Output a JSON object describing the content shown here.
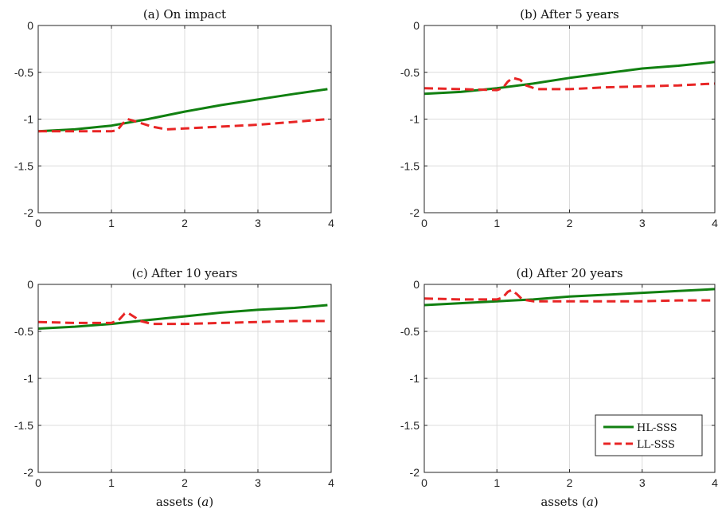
{
  "chart_data": [
    {
      "type": "line",
      "title": "(a) On impact",
      "xlabel": "",
      "xlim": [
        0,
        4
      ],
      "ylim": [
        -2,
        0
      ],
      "xticks": [
        "0",
        "1",
        "2",
        "3",
        "4"
      ],
      "yticks": [
        "-2",
        "-1.5",
        "-1",
        "-0.5",
        "0"
      ],
      "grid": true,
      "series": [
        {
          "name": "HL-SSS",
          "color": "#118011",
          "style": "solid",
          "points": [
            [
              0,
              -1.13
            ],
            [
              0.5,
              -1.11
            ],
            [
              1,
              -1.07
            ],
            [
              1.5,
              -1.0
            ],
            [
              2,
              -0.92
            ],
            [
              2.5,
              -0.85
            ],
            [
              3,
              -0.79
            ],
            [
              3.5,
              -0.73
            ],
            [
              3.95,
              -0.68
            ]
          ]
        },
        {
          "name": "LL-SSS",
          "color": "#e82525",
          "style": "dashed",
          "points": [
            [
              0,
              -1.13
            ],
            [
              0.5,
              -1.13
            ],
            [
              1.0,
              -1.13
            ],
            [
              1.08,
              -1.12
            ],
            [
              1.15,
              -1.05
            ],
            [
              1.22,
              -1.0
            ],
            [
              1.35,
              -1.03
            ],
            [
              1.55,
              -1.08
            ],
            [
              1.75,
              -1.11
            ],
            [
              2,
              -1.1
            ],
            [
              2.5,
              -1.08
            ],
            [
              3,
              -1.06
            ],
            [
              3.5,
              -1.03
            ],
            [
              3.95,
              -1.0
            ]
          ]
        }
      ]
    },
    {
      "type": "line",
      "title": "(b) After 5 years",
      "xlabel": "",
      "xlim": [
        0,
        4
      ],
      "ylim": [
        -2,
        0
      ],
      "xticks": [
        "0",
        "1",
        "2",
        "3",
        "4"
      ],
      "yticks": [
        "-2",
        "-1.5",
        "-1",
        "-0.5",
        "0"
      ],
      "grid": true,
      "series": [
        {
          "name": "HL-SSS",
          "color": "#118011",
          "style": "solid",
          "points": [
            [
              0,
              -0.73
            ],
            [
              0.5,
              -0.71
            ],
            [
              1,
              -0.67
            ],
            [
              1.5,
              -0.62
            ],
            [
              2,
              -0.56
            ],
            [
              2.5,
              -0.51
            ],
            [
              3,
              -0.46
            ],
            [
              3.5,
              -0.43
            ],
            [
              4,
              -0.39
            ]
          ]
        },
        {
          "name": "LL-SSS",
          "color": "#e82525",
          "style": "dashed",
          "points": [
            [
              0,
              -0.67
            ],
            [
              0.5,
              -0.68
            ],
            [
              1.0,
              -0.69
            ],
            [
              1.08,
              -0.67
            ],
            [
              1.15,
              -0.6
            ],
            [
              1.22,
              -0.56
            ],
            [
              1.32,
              -0.58
            ],
            [
              1.4,
              -0.64
            ],
            [
              1.55,
              -0.68
            ],
            [
              2,
              -0.68
            ],
            [
              2.5,
              -0.66
            ],
            [
              3,
              -0.65
            ],
            [
              3.5,
              -0.64
            ],
            [
              4,
              -0.62
            ]
          ]
        }
      ]
    },
    {
      "type": "line",
      "title": "(c) After 10 years",
      "xlabel": "assets ($a$)",
      "xlim": [
        0,
        4
      ],
      "ylim": [
        -2,
        0
      ],
      "xticks": [
        "0",
        "1",
        "2",
        "3",
        "4"
      ],
      "yticks": [
        "-2",
        "-1.5",
        "-1",
        "-0.5",
        "0"
      ],
      "grid": true,
      "series": [
        {
          "name": "HL-SSS",
          "color": "#118011",
          "style": "solid",
          "points": [
            [
              0,
              -0.47
            ],
            [
              0.5,
              -0.45
            ],
            [
              1,
              -0.42
            ],
            [
              1.5,
              -0.38
            ],
            [
              2,
              -0.34
            ],
            [
              2.5,
              -0.3
            ],
            [
              3,
              -0.27
            ],
            [
              3.5,
              -0.25
            ],
            [
              3.95,
              -0.22
            ]
          ]
        },
        {
          "name": "LL-SSS",
          "color": "#e82525",
          "style": "dashed",
          "points": [
            [
              0,
              -0.4
            ],
            [
              0.5,
              -0.41
            ],
            [
              1.0,
              -0.41
            ],
            [
              1.1,
              -0.38
            ],
            [
              1.18,
              -0.31
            ],
            [
              1.22,
              -0.3
            ],
            [
              1.3,
              -0.34
            ],
            [
              1.4,
              -0.39
            ],
            [
              1.55,
              -0.42
            ],
            [
              2,
              -0.42
            ],
            [
              2.5,
              -0.41
            ],
            [
              3,
              -0.4
            ],
            [
              3.5,
              -0.39
            ],
            [
              3.95,
              -0.39
            ]
          ]
        }
      ]
    },
    {
      "type": "line",
      "title": "(d) After 20 years",
      "xlabel": "assets ($a$)",
      "xlim": [
        0,
        4
      ],
      "ylim": [
        -2,
        0
      ],
      "xticks": [
        "0",
        "1",
        "2",
        "3",
        "4"
      ],
      "yticks": [
        "-2",
        "-1.5",
        "-1",
        "-0.5",
        "0"
      ],
      "grid": true,
      "legend": {
        "position": "bottom-right",
        "entries": [
          "HL-SSS",
          "LL-SSS"
        ]
      },
      "series": [
        {
          "name": "HL-SSS",
          "color": "#118011",
          "style": "solid",
          "points": [
            [
              0,
              -0.22
            ],
            [
              0.5,
              -0.2
            ],
            [
              1,
              -0.18
            ],
            [
              1.5,
              -0.16
            ],
            [
              2,
              -0.13
            ],
            [
              2.5,
              -0.11
            ],
            [
              3,
              -0.09
            ],
            [
              3.5,
              -0.07
            ],
            [
              4,
              -0.05
            ]
          ]
        },
        {
          "name": "LL-SSS",
          "color": "#e82525",
          "style": "dashed",
          "points": [
            [
              0,
              -0.15
            ],
            [
              0.5,
              -0.16
            ],
            [
              1.0,
              -0.16
            ],
            [
              1.08,
              -0.14
            ],
            [
              1.15,
              -0.08
            ],
            [
              1.2,
              -0.06
            ],
            [
              1.27,
              -0.1
            ],
            [
              1.35,
              -0.16
            ],
            [
              1.5,
              -0.18
            ],
            [
              2,
              -0.18
            ],
            [
              2.5,
              -0.18
            ],
            [
              3,
              -0.18
            ],
            [
              3.5,
              -0.17
            ],
            [
              4,
              -0.17
            ]
          ]
        }
      ]
    }
  ]
}
